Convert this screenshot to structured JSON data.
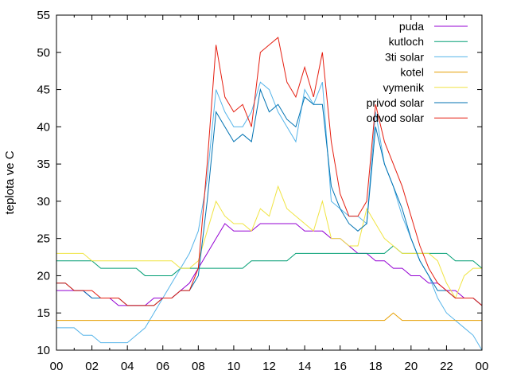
{
  "chart_data": {
    "type": "line",
    "ylabel": "teplota ve C",
    "xlabel": "",
    "title": "",
    "x_ticks": [
      "00",
      "02",
      "04",
      "06",
      "08",
      "10",
      "12",
      "14",
      "16",
      "18",
      "20",
      "22",
      "00"
    ],
    "y_ticks": [
      10,
      15,
      20,
      25,
      30,
      35,
      40,
      45,
      50,
      55
    ],
    "xlim": [
      0,
      24
    ],
    "ylim": [
      10,
      55
    ],
    "grid": false,
    "legend_position": "top-right",
    "x": [
      0,
      0.5,
      1,
      1.5,
      2,
      2.5,
      3,
      3.5,
      4,
      4.5,
      5,
      5.5,
      6,
      6.5,
      7,
      7.5,
      8,
      8.5,
      9,
      9.5,
      10,
      10.5,
      11,
      11.5,
      12,
      12.5,
      13,
      13.5,
      14,
      14.5,
      15,
      15.5,
      16,
      16.5,
      17,
      17.5,
      18,
      18.5,
      19,
      19.5,
      20,
      20.5,
      21,
      21.5,
      22,
      22.5,
      23,
      23.5,
      24
    ],
    "series": [
      {
        "name": "puda",
        "color": "#9400d3",
        "values": [
          18,
          18,
          18,
          18,
          17,
          17,
          17,
          16,
          16,
          16,
          16,
          17,
          17,
          17,
          18,
          19,
          21,
          23,
          25,
          27,
          26,
          26,
          26,
          27,
          27,
          27,
          27,
          27,
          26,
          26,
          26,
          25,
          25,
          24,
          23,
          23,
          22,
          22,
          21,
          21,
          20,
          20,
          19,
          19,
          18,
          18,
          17,
          17,
          16
        ]
      },
      {
        "name": "kutloch",
        "color": "#009e73",
        "values": [
          22,
          22,
          22,
          22,
          22,
          21,
          21,
          21,
          21,
          21,
          20,
          20,
          20,
          20,
          21,
          21,
          21,
          21,
          21,
          21,
          21,
          21,
          22,
          22,
          22,
          22,
          22,
          23,
          23,
          23,
          23,
          23,
          23,
          23,
          23,
          23,
          23,
          23,
          24,
          23,
          23,
          23,
          23,
          23,
          23,
          22,
          22,
          22,
          21
        ]
      },
      {
        "name": "3ti solar",
        "color": "#56b4e9",
        "values": [
          13,
          13,
          13,
          12,
          12,
          11,
          11,
          11,
          11,
          12,
          13,
          15,
          17,
          19,
          21,
          23,
          26,
          33,
          45,
          42,
          40,
          40,
          42,
          46,
          45,
          42,
          40,
          38,
          45,
          43,
          46,
          30,
          29,
          28,
          28,
          27,
          42,
          35,
          32,
          28,
          25,
          22,
          20,
          17,
          15,
          14,
          13,
          12,
          10
        ]
      },
      {
        "name": "kotel",
        "color": "#e69f00",
        "values": [
          14,
          14,
          14,
          14,
          14,
          14,
          14,
          14,
          14,
          14,
          14,
          14,
          14,
          14,
          14,
          14,
          14,
          14,
          14,
          14,
          14,
          14,
          14,
          14,
          14,
          14,
          14,
          14,
          14,
          14,
          14,
          14,
          14,
          14,
          14,
          14,
          14,
          14,
          15,
          14,
          14,
          14,
          14,
          14,
          14,
          14,
          14,
          14,
          14
        ]
      },
      {
        "name": "vymenik",
        "color": "#f0e442",
        "values": [
          23,
          23,
          23,
          23,
          22,
          22,
          22,
          22,
          22,
          22,
          22,
          22,
          22,
          22,
          21,
          21,
          22,
          26,
          30,
          28,
          27,
          27,
          26,
          29,
          28,
          32,
          29,
          28,
          27,
          26,
          30,
          25,
          25,
          24,
          24,
          29,
          27,
          25,
          24,
          23,
          23,
          23,
          23,
          22,
          19,
          17,
          20,
          21,
          21
        ]
      },
      {
        "name": "privod solar",
        "color": "#0072b2",
        "values": [
          19,
          19,
          18,
          18,
          17,
          17,
          17,
          17,
          16,
          16,
          16,
          16,
          17,
          17,
          18,
          18,
          20,
          30,
          42,
          40,
          38,
          39,
          38,
          45,
          42,
          43,
          41,
          40,
          44,
          43,
          43,
          32,
          29,
          27,
          26,
          27,
          40,
          35,
          32,
          29,
          25,
          22,
          20,
          18,
          18,
          17,
          17,
          17,
          16
        ]
      },
      {
        "name": "odvod solar",
        "color": "#e51e10",
        "values": [
          19,
          19,
          18,
          18,
          18,
          17,
          17,
          17,
          16,
          16,
          16,
          16,
          17,
          17,
          18,
          18,
          21,
          35,
          51,
          44,
          42,
          43,
          40,
          50,
          51,
          52,
          46,
          44,
          48,
          44,
          50,
          38,
          31,
          28,
          28,
          30,
          43,
          38,
          35,
          32,
          28,
          24,
          21,
          19,
          18,
          17,
          17,
          17,
          16
        ]
      }
    ]
  }
}
